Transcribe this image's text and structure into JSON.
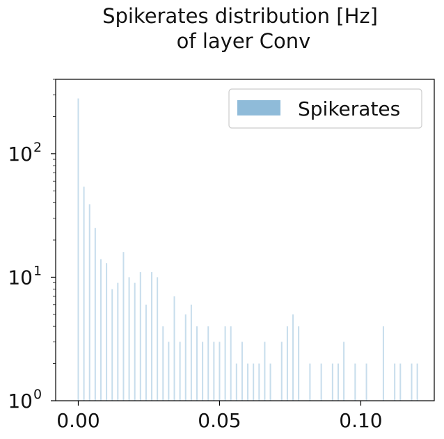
{
  "chart_data": {
    "type": "bar",
    "title_lines": [
      "Spikerates distribution [Hz]",
      "of layer Conv"
    ],
    "xlabel": "",
    "ylabel": "",
    "yscale": "log",
    "xlim": [
      -0.008,
      0.126
    ],
    "ylim": [
      1,
      400
    ],
    "xticks": [
      {
        "value": 0.0,
        "label": "0.00"
      },
      {
        "value": 0.05,
        "label": "0.05"
      },
      {
        "value": 0.1,
        "label": "0.10"
      }
    ],
    "yticks": [
      {
        "value": 1,
        "base": "10",
        "exp": "0"
      },
      {
        "value": 10,
        "base": "10",
        "exp": "1"
      },
      {
        "value": 100,
        "base": "10",
        "exp": "2"
      }
    ],
    "grid": false,
    "legend": {
      "position": "top-right",
      "label": "Spikerates"
    },
    "series": [
      {
        "name": "Spikerates",
        "color": "#1f77b4",
        "alpha": 0.5,
        "x": [
          0.0,
          0.002,
          0.004,
          0.006,
          0.008,
          0.01,
          0.012,
          0.014,
          0.016,
          0.018,
          0.02,
          0.022,
          0.024,
          0.026,
          0.028,
          0.03,
          0.032,
          0.034,
          0.036,
          0.038,
          0.04,
          0.042,
          0.044,
          0.046,
          0.048,
          0.05,
          0.052,
          0.054,
          0.056,
          0.058,
          0.06,
          0.062,
          0.064,
          0.066,
          0.068,
          0.072,
          0.074,
          0.076,
          0.078,
          0.082,
          0.086,
          0.09,
          0.092,
          0.094,
          0.098,
          0.102,
          0.108,
          0.112,
          0.114,
          0.118,
          0.12
        ],
        "values": [
          280,
          54,
          39,
          25,
          14,
          13,
          8,
          9,
          16,
          10,
          9,
          11,
          6,
          11,
          10,
          4,
          3,
          7,
          3,
          5,
          6,
          4,
          3,
          4,
          3,
          3,
          4,
          4,
          2,
          3,
          2,
          2,
          2,
          3,
          2,
          3,
          4,
          5,
          4,
          2,
          2,
          2,
          2,
          3,
          2,
          2,
          4,
          2,
          2,
          2,
          2
        ]
      }
    ]
  }
}
